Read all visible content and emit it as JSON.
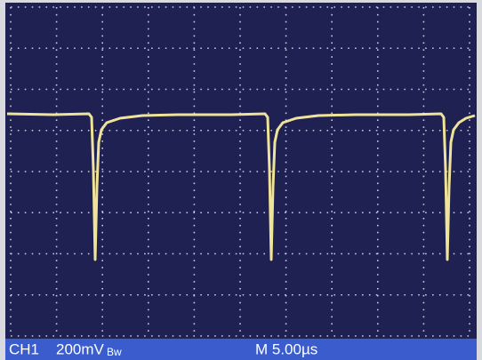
{
  "status_bar": {
    "channel": "CH1",
    "volts_per_div": "200mV",
    "bandwidth": "Bw",
    "timebase": "M 5.00µs"
  }
}
